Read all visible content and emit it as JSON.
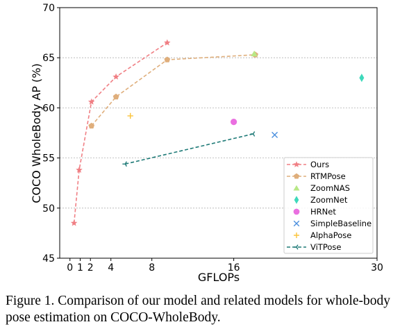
{
  "chart_data": {
    "type": "line",
    "xlabel": "GFLOPs",
    "ylabel": "COCO WholeBody AP (%)",
    "xlim": [
      -1,
      30
    ],
    "ylim": [
      45,
      70
    ],
    "xticks": [
      0,
      1,
      2,
      4,
      8,
      16,
      30
    ],
    "yticks": [
      45,
      50,
      55,
      60,
      65,
      70
    ],
    "grid": "horizontal-dashed",
    "legend_position": "lower-right",
    "series": [
      {
        "name": "Ours",
        "color": "#f07f84",
        "marker": "star",
        "linestyle": "dashed",
        "points": [
          [
            0.4,
            48.5
          ],
          [
            0.9,
            53.8
          ],
          [
            2.1,
            60.6
          ],
          [
            4.5,
            63.1
          ],
          [
            9.5,
            66.5
          ]
        ]
      },
      {
        "name": "RTMPose",
        "color": "#dfae7b",
        "marker": "pentagon",
        "linestyle": "dashed",
        "points": [
          [
            2.1,
            58.2
          ],
          [
            4.5,
            61.1
          ],
          [
            9.5,
            64.8
          ],
          [
            18.1,
            65.3
          ]
        ]
      },
      {
        "name": "ZoomNAS",
        "color": "#b8e886",
        "marker": "triangle",
        "linestyle": "none",
        "points": [
          [
            18.0,
            65.4
          ]
        ]
      },
      {
        "name": "ZoomNet",
        "color": "#3ed9bb",
        "marker": "thin_diamond",
        "linestyle": "none",
        "points": [
          [
            28.5,
            63.0
          ]
        ]
      },
      {
        "name": "HRNet",
        "color": "#ea6fe0",
        "marker": "circle",
        "linestyle": "none",
        "points": [
          [
            16.0,
            58.6
          ]
        ]
      },
      {
        "name": "SimpleBaseline",
        "color": "#4b8fde",
        "marker": "x",
        "linestyle": "none",
        "points": [
          [
            20.0,
            57.3
          ]
        ]
      },
      {
        "name": "AlphaPose",
        "color": "#fbc43a",
        "marker": "plus",
        "linestyle": "none",
        "points": [
          [
            5.9,
            59.2
          ]
        ]
      },
      {
        "name": "ViTPose",
        "color": "#1e7a77",
        "marker": "tri_left",
        "linestyle": "dashed",
        "points": [
          [
            5.4,
            54.4
          ],
          [
            17.9,
            57.4
          ]
        ]
      }
    ]
  },
  "caption": "Figure 1. Comparison of our model and related models for whole-body pose estimation on COCO-WholeBody."
}
